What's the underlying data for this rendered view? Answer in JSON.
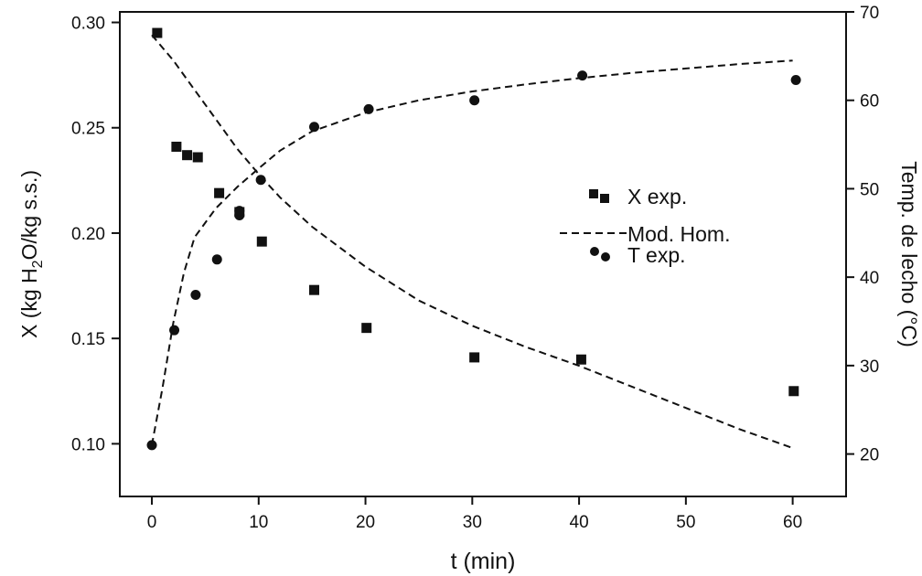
{
  "chart_data": {
    "type": "scatter",
    "x_axis": {
      "label": "t (min)",
      "range": [
        -3,
        65
      ],
      "ticks": [
        0,
        10,
        20,
        30,
        40,
        50,
        60
      ],
      "tick_labels": [
        "0",
        "10",
        "20",
        "30",
        "40",
        "50",
        "60"
      ]
    },
    "y_left": {
      "label_prefix": "X (kg H",
      "label_sub": "2",
      "label_suffix": "O/kg s.s.)",
      "range": [
        0.075,
        0.305
      ],
      "ticks": [
        0.1,
        0.15,
        0.2,
        0.25,
        0.3
      ],
      "tick_labels": [
        "0.10",
        "0.15",
        "0.20",
        "0.25",
        "0.30"
      ]
    },
    "y_right": {
      "label": "Temp. de lecho (°C)",
      "range": [
        15.2,
        70
      ],
      "ticks": [
        20,
        30,
        40,
        50,
        60,
        70
      ],
      "tick_labels": [
        "20",
        "30",
        "40",
        "50",
        "60",
        "70"
      ]
    },
    "series": [
      {
        "name": "X exp.",
        "kind": "scatter",
        "marker": "square",
        "axis": "left",
        "x": [
          0.5,
          2.3,
          3.3,
          4.3,
          6.3,
          8.2,
          10.3,
          15.2,
          20.1,
          30.2,
          40.2,
          60.1
        ],
        "y": [
          0.295,
          0.241,
          0.237,
          0.236,
          0.219,
          0.21,
          0.196,
          0.173,
          0.155,
          0.141,
          0.14,
          0.125
        ]
      },
      {
        "name": "Mod. Hom.",
        "kind": "line",
        "style": "dashed",
        "axis": "left",
        "x": [
          0,
          2,
          4,
          6,
          8,
          10,
          12,
          15,
          20,
          25,
          30,
          35,
          40,
          45,
          50,
          55,
          60
        ],
        "y": [
          0.294,
          0.282,
          0.268,
          0.254,
          0.24,
          0.228,
          0.217,
          0.203,
          0.184,
          0.168,
          0.156,
          0.146,
          0.137,
          0.127,
          0.117,
          0.107,
          0.098
        ]
      },
      {
        "name": "Mod. Hom.",
        "kind": "line",
        "style": "dashed",
        "axis": "right",
        "x": [
          0,
          1,
          2,
          3,
          4,
          6,
          8,
          10,
          12,
          15,
          20,
          25,
          30,
          35,
          40,
          45,
          50,
          55,
          60
        ],
        "y": [
          21.0,
          27.5,
          34.8,
          40.5,
          44.5,
          47.8,
          50.2,
          52.3,
          54.3,
          56.5,
          58.6,
          60.0,
          61.0,
          61.8,
          62.5,
          63.1,
          63.6,
          64.1,
          64.5
        ]
      },
      {
        "name": "T exp.",
        "kind": "scatter",
        "marker": "circle",
        "axis": "right",
        "x": [
          0,
          2.1,
          4.1,
          6.1,
          8.2,
          8.2,
          10.2,
          15.2,
          20.3,
          30.2,
          40.3,
          60.3
        ],
        "y": [
          21.0,
          34.0,
          38.0,
          42.0,
          47.0,
          47.5,
          51.0,
          57.0,
          59.0,
          60.0,
          62.8,
          62.3
        ]
      }
    ],
    "legend": {
      "placement": "center-right",
      "entries": [
        {
          "marker": "square",
          "label": "X exp."
        },
        {
          "marker": "dash",
          "label": "Mod. Hom."
        },
        {
          "marker": "circle",
          "label": "T exp."
        }
      ]
    },
    "grid": false
  }
}
